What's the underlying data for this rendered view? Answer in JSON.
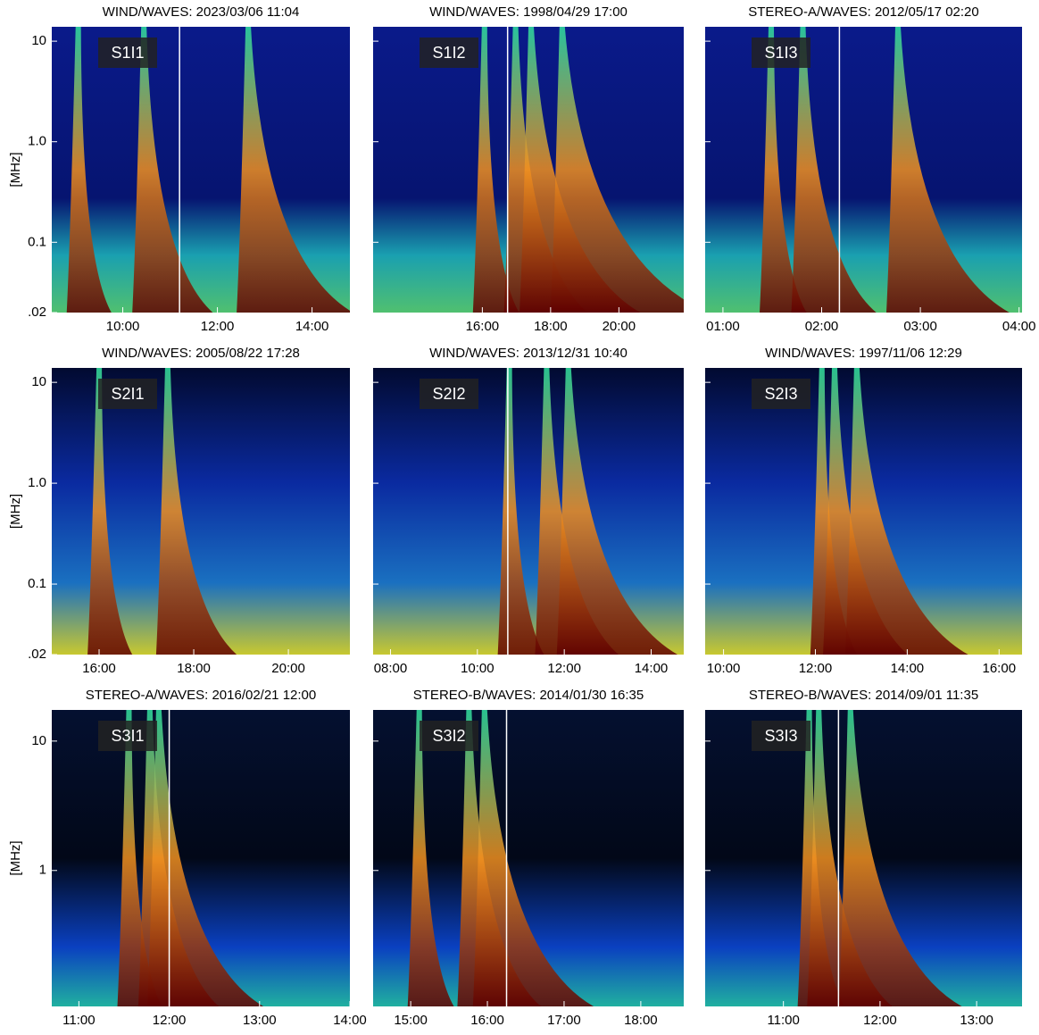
{
  "chart_data": [
    {
      "type": "spectrogram",
      "title": "WIND/WAVES: 2023/03/06 11:04",
      "annotation": "S1I1",
      "ylabel": "[MHz]",
      "log_y": true,
      "xlim": [
        8.5,
        14.8
      ],
      "xticks": [
        {
          "value": 10,
          "label": "10:00"
        },
        {
          "value": 12,
          "label": "12:00"
        },
        {
          "value": 14,
          "label": "14:00"
        }
      ],
      "ylim": [
        0.02,
        13.9
      ],
      "yticks": [
        {
          "value": 0.02,
          "label": ".02"
        },
        {
          "value": 0.1,
          "label": "0.1"
        },
        {
          "value": 1,
          "label": "1.0"
        },
        {
          "value": 10,
          "label": "10"
        }
      ],
      "marker_x": 11.2
    },
    {
      "type": "spectrogram",
      "title": "WIND/WAVES: 1998/04/29 17:00",
      "annotation": "S1I2",
      "log_y": true,
      "xlim": [
        12.8,
        21.9
      ],
      "xticks": [
        {
          "value": 16,
          "label": "16:00"
        },
        {
          "value": 18,
          "label": "18:00"
        },
        {
          "value": 20,
          "label": "20:00"
        }
      ],
      "ylim": [
        0.02,
        13.9
      ],
      "yticks": [
        0.1,
        1,
        10
      ],
      "marker_x": 16.74
    },
    {
      "type": "spectrogram",
      "title": "STEREO-A/WAVES: 2012/05/17 02:20",
      "annotation": "S1I3",
      "log_y": true,
      "xlim": [
        0.82,
        4.03
      ],
      "xticks": [
        {
          "value": 1,
          "label": "01:00"
        },
        {
          "value": 2,
          "label": "02:00"
        },
        {
          "value": 3,
          "label": "03:00"
        },
        {
          "value": 4,
          "label": "04:00"
        }
      ],
      "ylim": [
        0.02,
        13.9
      ],
      "yticks": [
        0.1,
        1,
        10
      ],
      "marker_x": 2.18
    },
    {
      "type": "spectrogram",
      "title": "WIND/WAVES: 2005/08/22 17:28",
      "annotation": "S2I1",
      "ylabel": "[MHz]",
      "log_y": true,
      "xlim": [
        15.0,
        21.3
      ],
      "xticks": [
        {
          "value": 16,
          "label": "16:00"
        },
        {
          "value": 18,
          "label": "18:00"
        },
        {
          "value": 20,
          "label": "20:00"
        }
      ],
      "ylim": [
        0.02,
        13.9
      ],
      "yticks": [
        {
          "value": 0.02,
          "label": ".02"
        },
        {
          "value": 0.1,
          "label": "0.1"
        },
        {
          "value": 1,
          "label": "1.0"
        },
        {
          "value": 10,
          "label": "10"
        }
      ]
    },
    {
      "type": "spectrogram",
      "title": "WIND/WAVES: 2013/12/31 10:40",
      "annotation": "S2I2",
      "log_y": true,
      "xlim": [
        7.6,
        14.75
      ],
      "xticks": [
        {
          "value": 8,
          "label": "08:00"
        },
        {
          "value": 10,
          "label": "10:00"
        },
        {
          "value": 12,
          "label": "12:00"
        },
        {
          "value": 14,
          "label": "14:00"
        }
      ],
      "ylim": [
        0.02,
        13.9
      ],
      "yticks": [
        0.1,
        1,
        10
      ],
      "marker_x": 10.7
    },
    {
      "type": "spectrogram",
      "title": "WIND/WAVES: 1997/11/06 12:29",
      "annotation": "S2I3",
      "log_y": true,
      "xlim": [
        9.6,
        16.5
      ],
      "xticks": [
        {
          "value": 10,
          "label": "10:00"
        },
        {
          "value": 12,
          "label": "12:00"
        },
        {
          "value": 14,
          "label": "14:00"
        },
        {
          "value": 16,
          "label": "16:00"
        }
      ],
      "ylim": [
        0.02,
        13.9
      ],
      "yticks": [
        0.1,
        1,
        10
      ]
    },
    {
      "type": "spectrogram",
      "title": "STEREO-A/WAVES: 2016/02/21 12:00",
      "annotation": "S3I1",
      "ylabel": "[MHz]",
      "log_y": true,
      "xlim": [
        10.7,
        14.0
      ],
      "xticks": [
        {
          "value": 11,
          "label": "11:00"
        },
        {
          "value": 12,
          "label": "12:00"
        },
        {
          "value": 13,
          "label": "13:00"
        },
        {
          "value": 14,
          "label": "14:00"
        }
      ],
      "ylim": [
        0.089,
        17.4
      ],
      "yticks": [
        1,
        10
      ],
      "marker_x": 12.0
    },
    {
      "type": "spectrogram",
      "title": "STEREO-B/WAVES: 2014/01/30 16:35",
      "annotation": "S3I2",
      "log_y": true,
      "xlim": [
        14.51,
        18.56
      ],
      "xticks": [
        {
          "value": 15,
          "label": "15:00"
        },
        {
          "value": 16,
          "label": "16:00"
        },
        {
          "value": 17,
          "label": "17:00"
        },
        {
          "value": 18,
          "label": "18:00"
        }
      ],
      "ylim": [
        0.089,
        17.4
      ],
      "yticks": [
        1,
        10
      ],
      "marker_x": 16.25
    },
    {
      "type": "spectrogram",
      "title": "STEREO-B/WAVES: 2014/09/01 11:35",
      "annotation": "S3I3",
      "log_y": true,
      "xlim": [
        10.19,
        13.47
      ],
      "xticks": [
        {
          "value": 11,
          "label": "11:00"
        },
        {
          "value": 12,
          "label": "12:00"
        },
        {
          "value": 13,
          "label": "13:00"
        }
      ],
      "ylim": [
        0.089,
        17.4
      ],
      "yticks": [
        1,
        10
      ],
      "marker_x": 11.57
    }
  ]
}
